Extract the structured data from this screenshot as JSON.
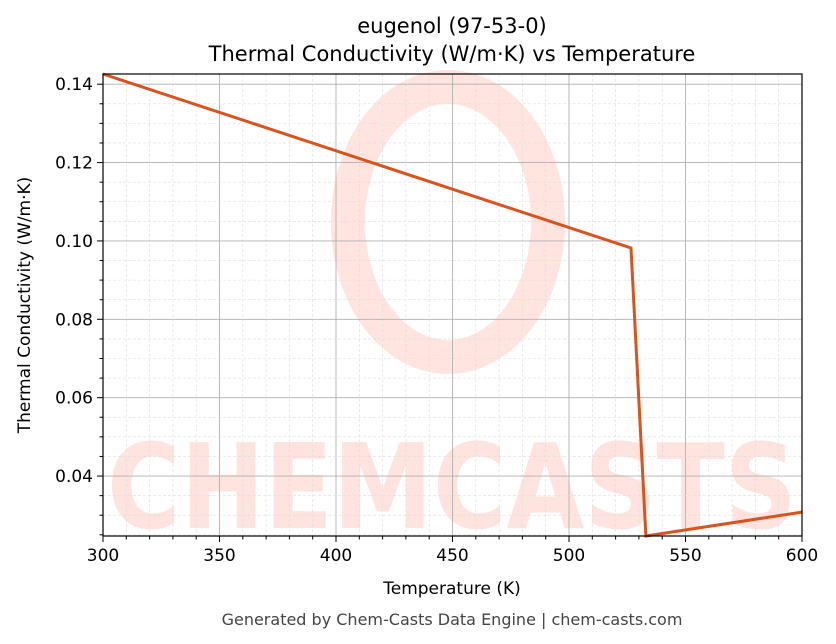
{
  "chart_data": {
    "type": "line",
    "title": "eugenol (97-53-0)",
    "subtitle": "Thermal Conductivity (W/m·K) vs Temperature",
    "xlabel": "Temperature (K)",
    "ylabel": "Thermal Conductivity (W/m·K)",
    "xlim": [
      300,
      600
    ],
    "ylim": [
      0.0247,
      0.1426
    ],
    "xticks": [
      "300",
      "350",
      "400",
      "450",
      "500",
      "550",
      "600"
    ],
    "yticks": [
      "0.04",
      "0.06",
      "0.08",
      "0.10",
      "0.12",
      "0.14"
    ],
    "grid": true,
    "series": [
      {
        "color": "#d9531e",
        "x": [
          300,
          526.6,
          533.0,
          600
        ],
        "y": [
          0.1426,
          0.0982,
          0.0247,
          0.0308
        ]
      }
    ]
  },
  "watermark": "CHEMCASTS",
  "footer": "Generated by Chem-Casts Data Engine | chem-casts.com"
}
